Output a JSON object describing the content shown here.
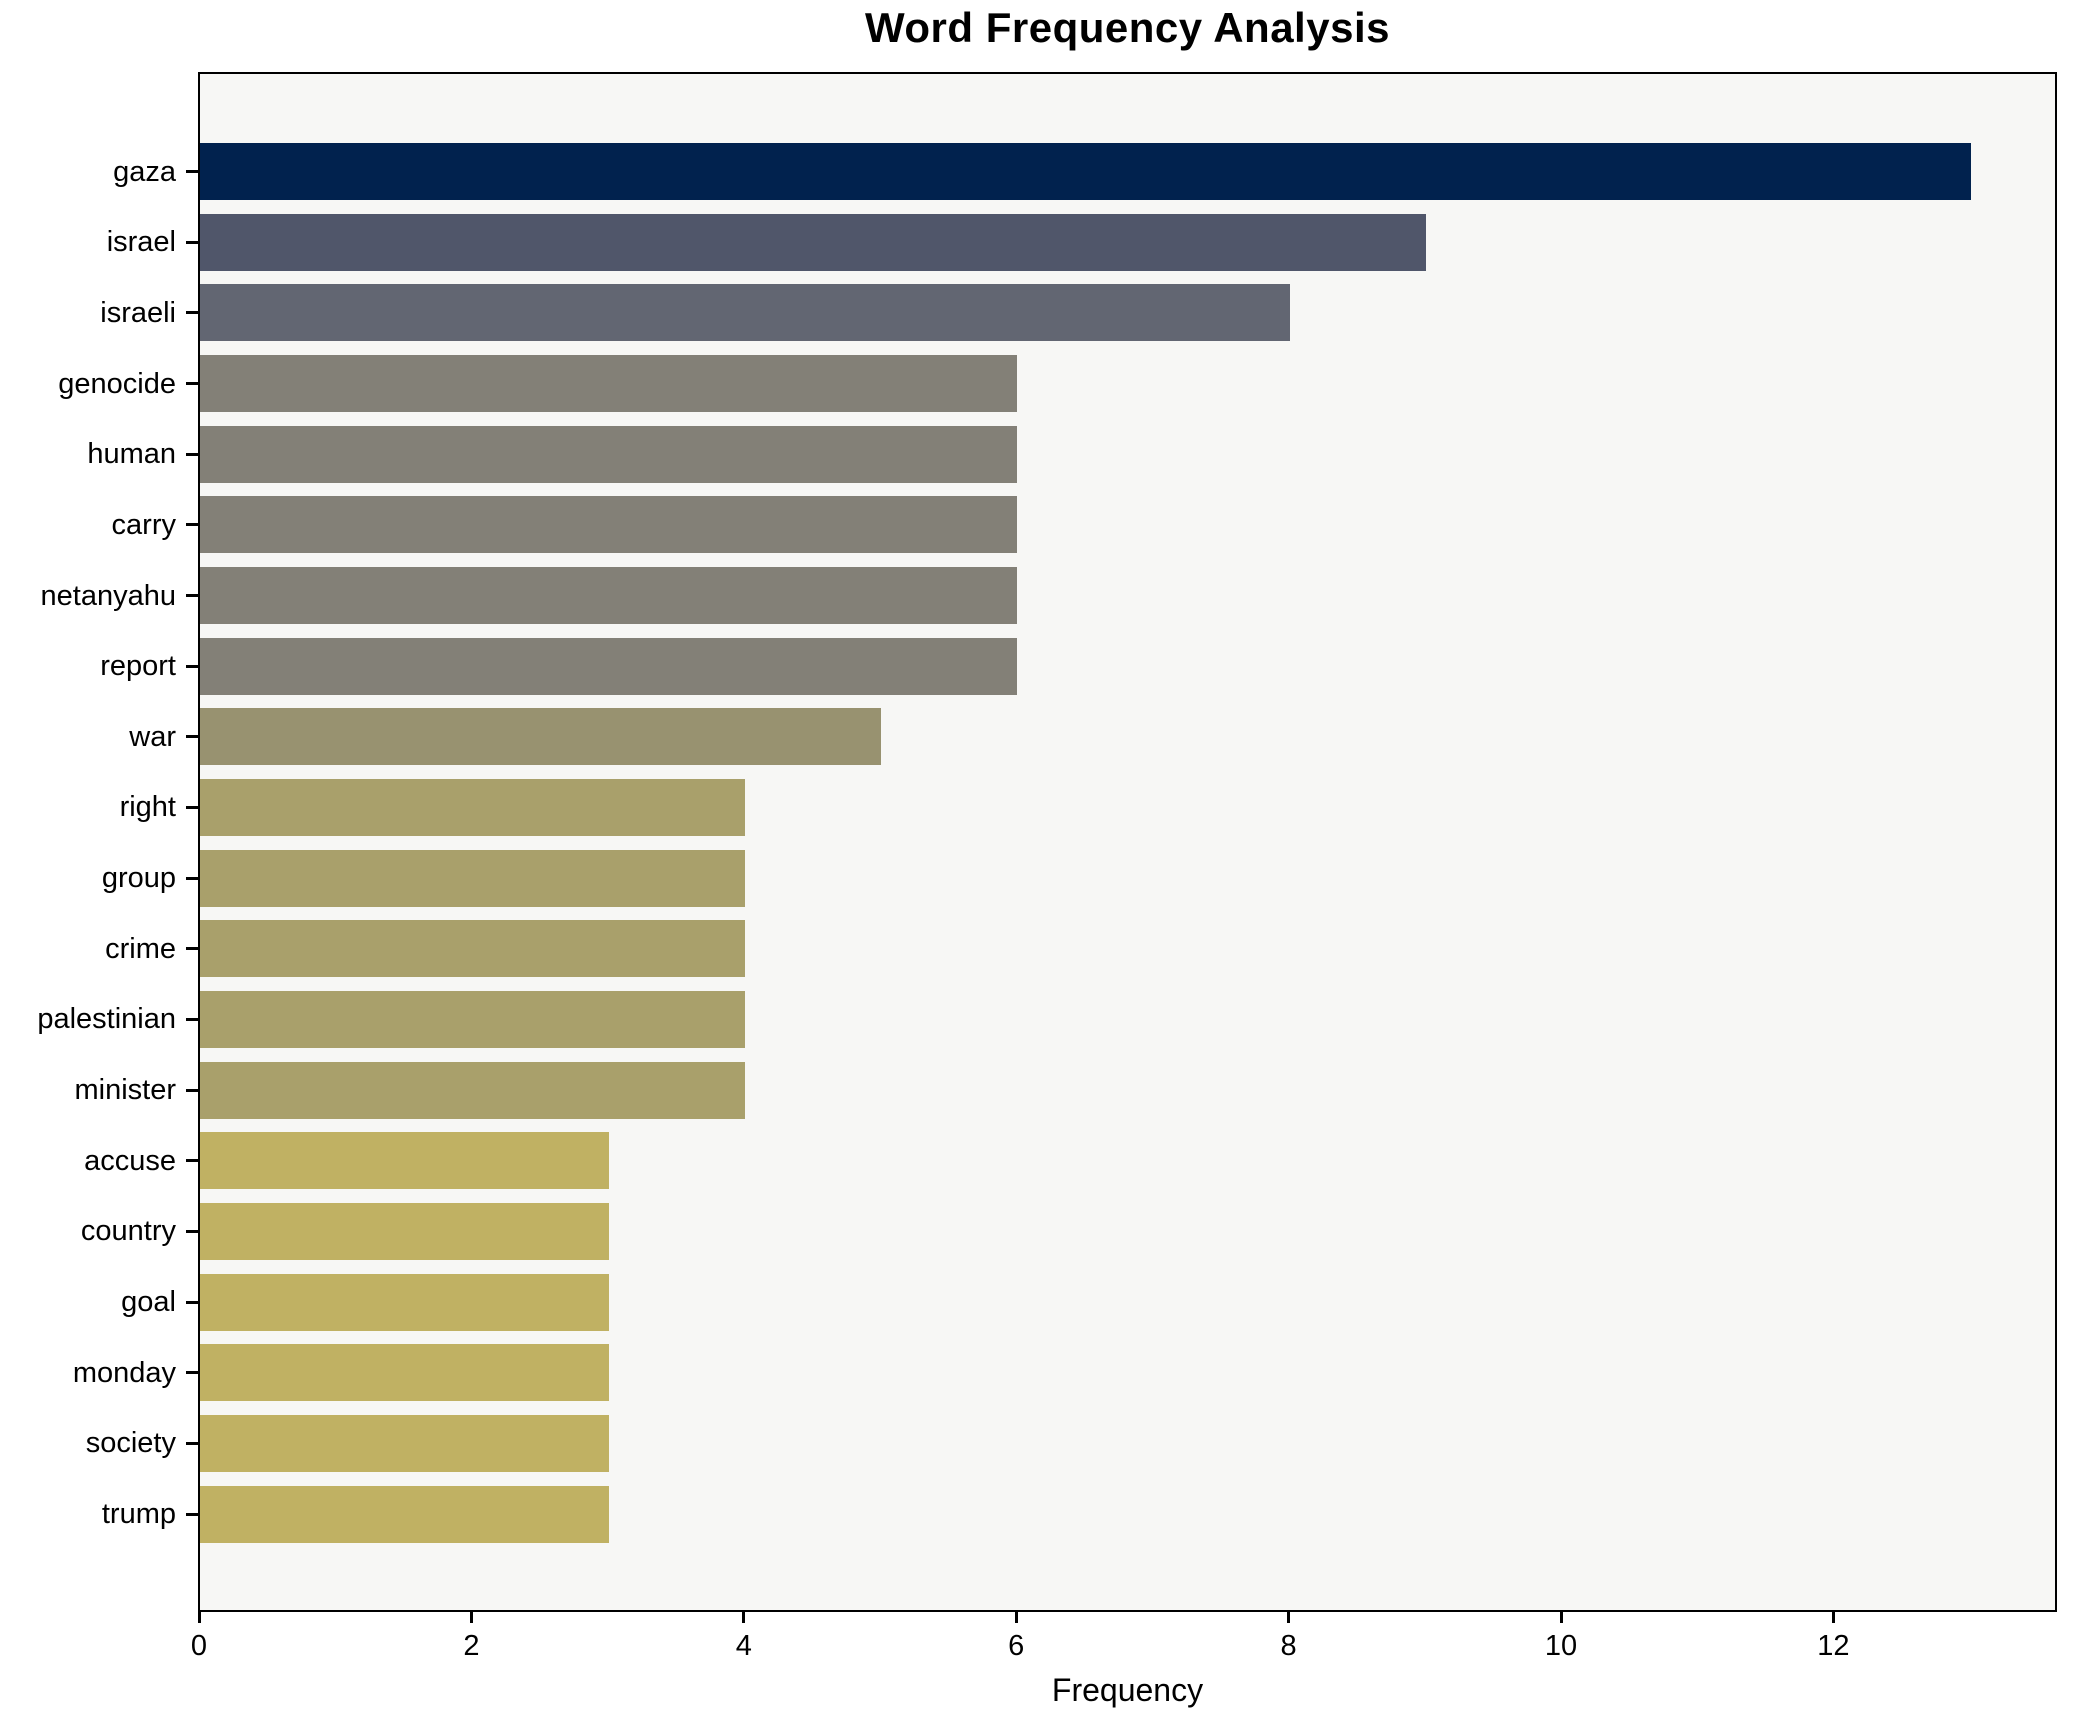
{
  "chart_data": {
    "type": "bar",
    "orientation": "horizontal",
    "title": "Word Frequency Analysis",
    "xlabel": "Frequency",
    "ylabel": "",
    "categories": [
      "gaza",
      "israel",
      "israeli",
      "genocide",
      "human",
      "carry",
      "netanyahu",
      "report",
      "war",
      "right",
      "group",
      "crime",
      "palestinian",
      "minister",
      "accuse",
      "country",
      "goal",
      "monday",
      "society",
      "trump"
    ],
    "values": [
      13,
      9,
      8,
      6,
      6,
      6,
      6,
      6,
      5,
      4,
      4,
      4,
      4,
      4,
      3,
      3,
      3,
      3,
      3,
      3
    ],
    "bar_colors": [
      "#01224e",
      "#50566a",
      "#626672",
      "#838077",
      "#838077",
      "#838077",
      "#838077",
      "#838077",
      "#989270",
      "#a9a06b",
      "#a9a06b",
      "#a9a06b",
      "#a9a06b",
      "#a9a06b",
      "#c0b163",
      "#c0b163",
      "#c0b163",
      "#c0b163",
      "#c0b163",
      "#c0b163"
    ],
    "xticks": [
      0,
      2,
      4,
      6,
      8,
      10,
      12
    ],
    "xlim": [
      0,
      13.64
    ],
    "grid": false,
    "legend": null,
    "plot_background": "#f7f7f5",
    "figure_background": "#ffffff",
    "spine_color": "#000000"
  }
}
